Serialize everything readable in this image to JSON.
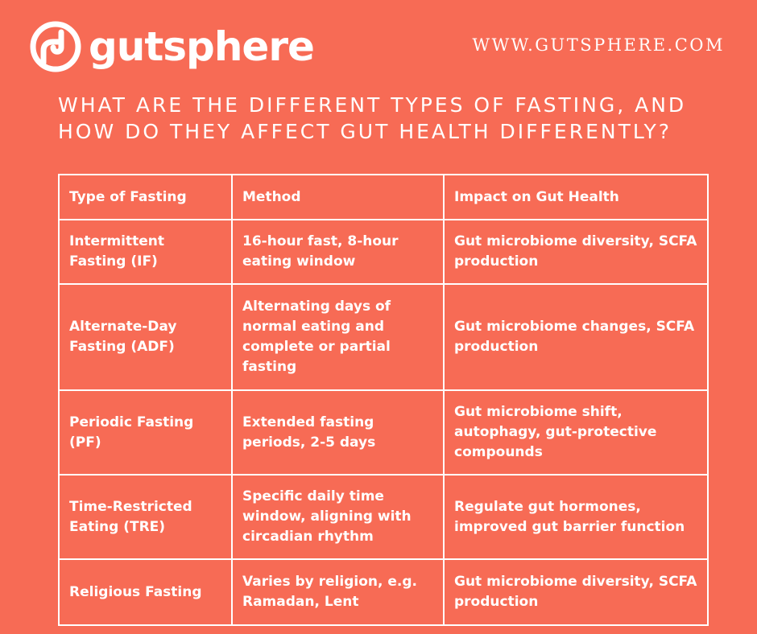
{
  "brand": {
    "name": "gutsphere",
    "website": "WWW.GUTSPHERE.COM"
  },
  "heading": "What are the different types of fasting, and how do they affect gut health differently?",
  "table": {
    "headers": [
      "Type of Fasting",
      "Method",
      "Impact on Gut Health"
    ],
    "rows": [
      [
        "Intermittent Fasting (IF)",
        "16-hour fast, 8-hour eating window",
        "Gut microbiome diversity, SCFA production"
      ],
      [
        "Alternate-Day Fasting (ADF)",
        "Alternating days of normal eating and complete or partial fasting",
        "Gut microbiome changes, SCFA production"
      ],
      [
        "Periodic Fasting (PF)",
        "Extended fasting periods, 2-5 days",
        "Gut microbiome shift, autophagy, gut-protective compounds"
      ],
      [
        "Time-Restricted Eating (TRE)",
        "Specific daily time window, aligning with circadian rhythm",
        "Regulate gut hormones, improved gut barrier function"
      ],
      [
        "Religious Fasting",
        "Varies by religion, e.g. Ramadan, Lent",
        "Gut microbiome diversity, SCFA production"
      ]
    ]
  },
  "colors": {
    "background": "#f76b55",
    "foreground": "#ffffff"
  }
}
